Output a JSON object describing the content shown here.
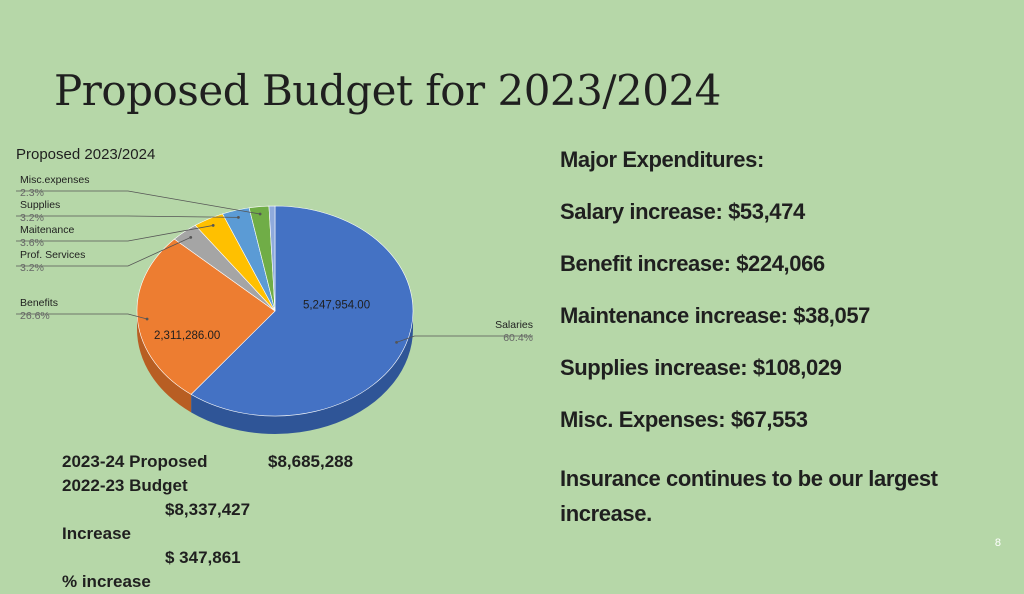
{
  "slide": {
    "title": "Proposed Budget for 2023/2024",
    "page_number": "8"
  },
  "chart_data": {
    "type": "pie",
    "title": "Proposed 2023/2024",
    "three_d": true,
    "slices": [
      {
        "name": "Salaries",
        "percent": 60.4,
        "percent_label": "60.4%",
        "value_label": "5,247,954.00",
        "color": "#4472c4",
        "side_color": "#2f5597"
      },
      {
        "name": "Benefits",
        "percent": 26.6,
        "percent_label": "26.6%",
        "value_label": "2,311,286.00",
        "color": "#ed7d31",
        "side_color": "#b85e23"
      },
      {
        "name": "Prof. Services",
        "percent": 3.2,
        "percent_label": "3.2%",
        "value_label": "",
        "color": "#a5a5a5",
        "side_color": "#7c7c7c"
      },
      {
        "name": "Maitenance",
        "percent": 3.6,
        "percent_label": "3.6%",
        "value_label": "",
        "color": "#ffc000",
        "side_color": "#c99700"
      },
      {
        "name": "Supplies",
        "percent": 3.2,
        "percent_label": "3.2%",
        "value_label": "",
        "color": "#5b9bd5",
        "side_color": "#3f74a3"
      },
      {
        "name": "Misc.expenses",
        "percent": 2.3,
        "percent_label": "2.3%",
        "value_label": "",
        "color": "#70ad47",
        "side_color": "#4f7f31"
      },
      {
        "name": "",
        "percent": 0.7,
        "percent_label": "",
        "value_label": "",
        "color": "#8faadc",
        "side_color": "#6b85b8"
      }
    ]
  },
  "expenditures": {
    "heading": "Major Expenditures:",
    "items": [
      "Salary increase:  $53,474",
      "Benefit increase:  $224,066",
      "Maintenance increase:  $38,057",
      "Supplies increase: $108,029",
      "Misc. Expenses: $67,553"
    ],
    "note": "Insurance continues to be our largest increase."
  },
  "summary": {
    "proposed_label": "2023-24 Proposed",
    "proposed_amount": "$8,685,288",
    "budget_label": "2022-23 Budget",
    "budget_amount": "$8,337,427",
    "increase_label": "Increase",
    "increase_amount": "$ 347,861",
    "percent_label": "% increase"
  }
}
